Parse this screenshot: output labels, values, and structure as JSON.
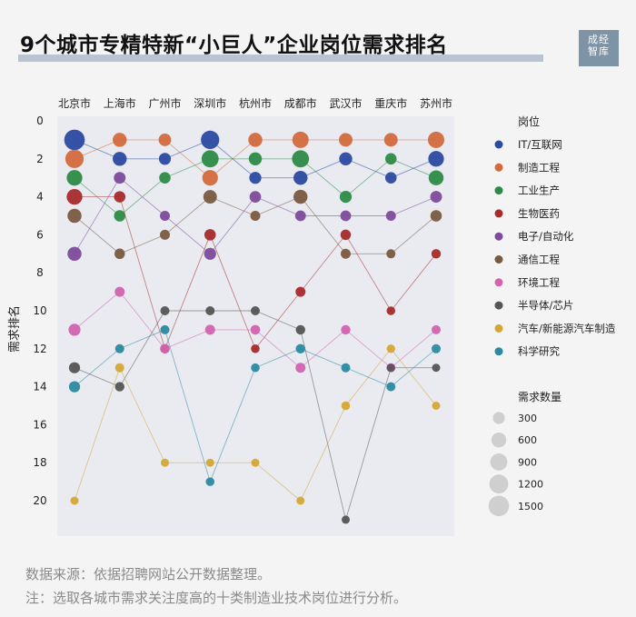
{
  "title": "9个城市专精特新“小巨人”企业岗位需求排名",
  "logo": {
    "line1": "成经",
    "line2": "智库"
  },
  "footer": {
    "source": "数据来源：依据招聘网站公开数据整理。",
    "note": "注：选取各城市需求关注度高的十类制造业技术岗位进行分析。"
  },
  "chart_data": {
    "type": "scatter",
    "subtype": "bump chart",
    "title": "",
    "xlabel": "",
    "ylabel": "需求排名",
    "categories": [
      "北京市",
      "上海市",
      "广州市",
      "深圳市",
      "杭州市",
      "成都市",
      "武汉市",
      "重庆市",
      "苏州市"
    ],
    "y_axis_reversed": true,
    "ylim": [
      0,
      21
    ],
    "yticks": [
      0,
      2,
      4,
      6,
      8,
      10,
      12,
      14,
      16,
      18,
      20
    ],
    "legend_title": "岗位",
    "size_legend_title": "需求数量",
    "size_legend_values": [
      300,
      600,
      900,
      1200,
      1500
    ],
    "series": [
      {
        "name": "IT/互联网",
        "color": "#2b4aa1",
        "ranks": [
          1,
          2,
          2,
          1,
          3,
          3,
          2,
          3,
          2
        ],
        "sizes": [
          1500,
          500,
          300,
          1100,
          300,
          500,
          400,
          250,
          700
        ]
      },
      {
        "name": "制造工程",
        "color": "#d36a3c",
        "ranks": [
          2,
          1,
          1,
          3,
          1,
          1,
          1,
          1,
          1
        ],
        "sizes": [
          1100,
          500,
          350,
          700,
          500,
          800,
          450,
          450,
          800
        ]
      },
      {
        "name": "工业生产",
        "color": "#2e8b47",
        "ranks": [
          3,
          5,
          3,
          2,
          2,
          2,
          4,
          2,
          3
        ],
        "sizes": [
          700,
          250,
          250,
          900,
          400,
          900,
          300,
          250,
          600
        ]
      },
      {
        "name": "生物医药",
        "color": "#a82b2b",
        "ranks": [
          4,
          4,
          12,
          6,
          12,
          9,
          6,
          10,
          7
        ],
        "sizes": [
          700,
          250,
          80,
          250,
          80,
          150,
          180,
          80,
          120
        ]
      },
      {
        "name": "电子/自动化",
        "color": "#7d4b9b",
        "ranks": [
          7,
          3,
          5,
          7,
          4,
          5,
          5,
          5,
          4
        ],
        "sizes": [
          500,
          280,
          150,
          300,
          260,
          200,
          200,
          150,
          280
        ]
      },
      {
        "name": "通信工程",
        "color": "#7a5a3f",
        "ranks": [
          5,
          7,
          6,
          4,
          5,
          4,
          7,
          7,
          5
        ],
        "sizes": [
          500,
          180,
          150,
          450,
          150,
          500,
          150,
          100,
          250
        ]
      },
      {
        "name": "环境工程",
        "color": "#d264b0",
        "ranks": [
          11,
          9,
          12,
          11,
          11,
          13,
          11,
          13,
          11
        ],
        "sizes": [
          300,
          150,
          130,
          150,
          130,
          150,
          120,
          100,
          100
        ]
      },
      {
        "name": "半导体/芯片",
        "color": "#555555",
        "ranks": [
          13,
          14,
          10,
          10,
          10,
          11,
          21,
          13,
          13
        ],
        "sizes": [
          230,
          120,
          100,
          100,
          100,
          120,
          60,
          60,
          60
        ]
      },
      {
        "name": "汽车/新能源汽车制造",
        "color": "#d4a634",
        "ranks": [
          20,
          13,
          18,
          18,
          18,
          20,
          15,
          12,
          15
        ],
        "sizes": [
          60,
          100,
          60,
          60,
          60,
          60,
          80,
          70,
          60
        ]
      },
      {
        "name": "科学研究",
        "color": "#2b8aa0",
        "ranks": [
          14,
          12,
          11,
          19,
          13,
          12,
          13,
          14,
          12
        ],
        "sizes": [
          230,
          100,
          100,
          80,
          80,
          120,
          100,
          100,
          100
        ]
      }
    ]
  }
}
